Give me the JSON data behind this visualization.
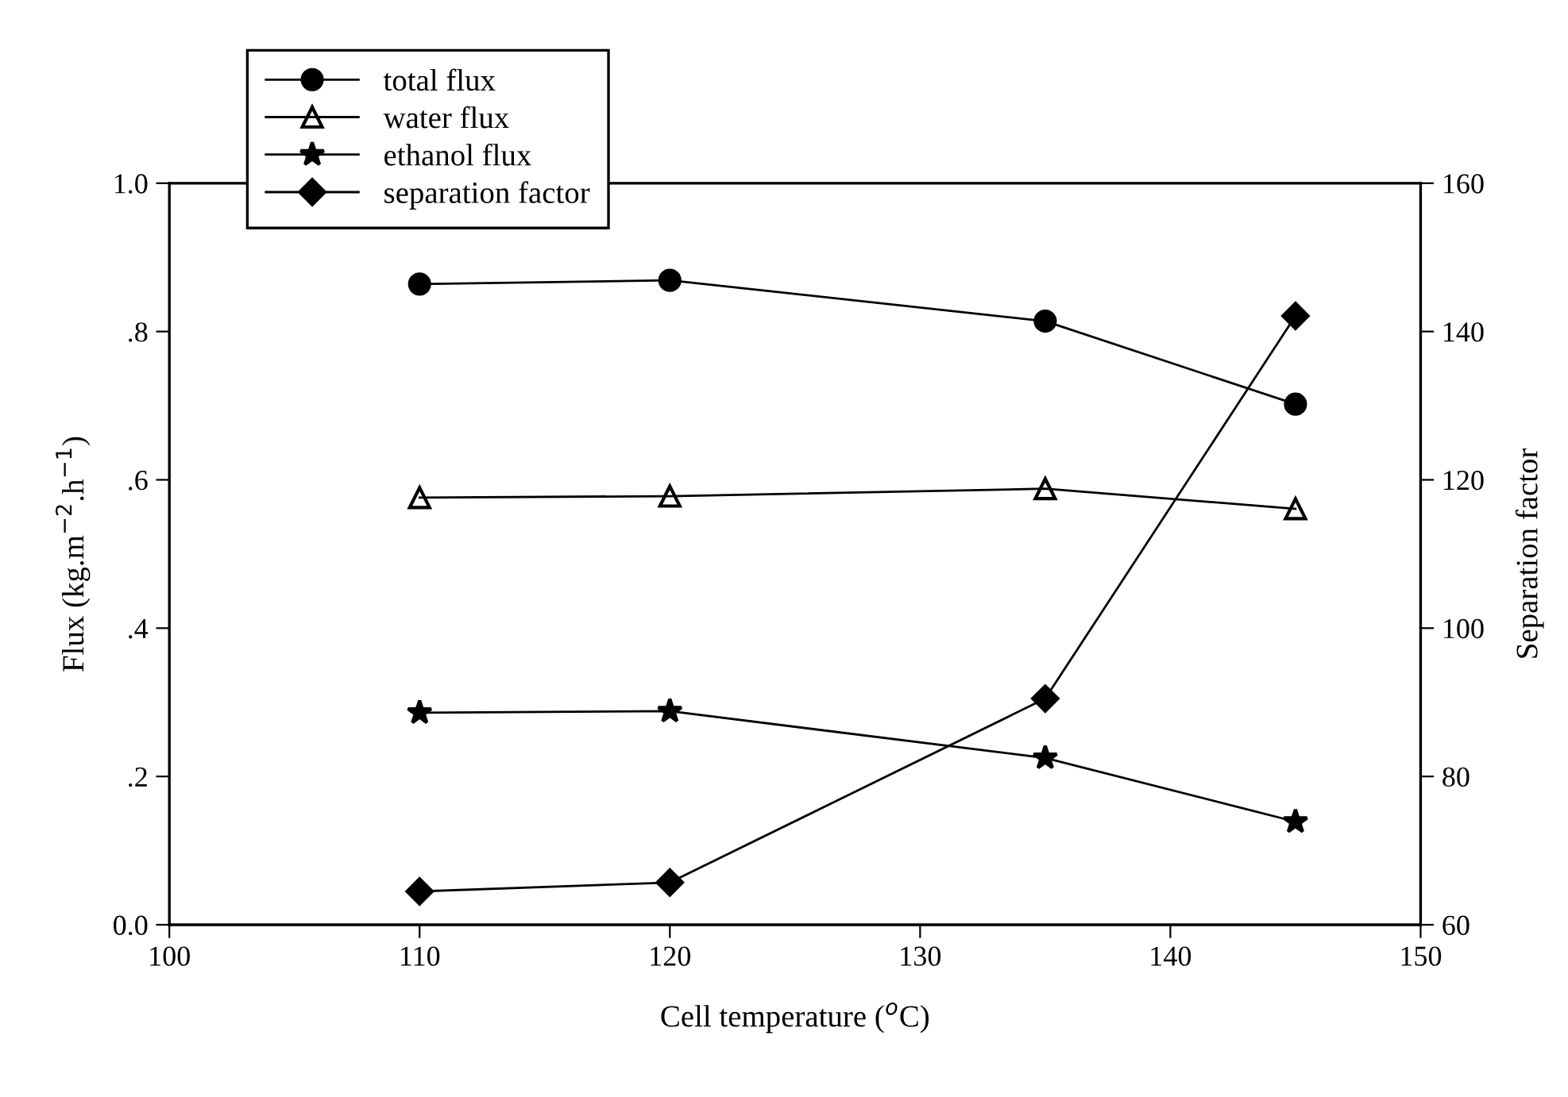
{
  "chart_data": {
    "type": "line",
    "xlabel": "Cell temperature ($^{o}$C)",
    "ylabel": "Flux (kg.m$^{−2}$.h$^{−1}$)",
    "y2label": "Separation factor",
    "x": [
      110,
      120,
      135,
      145
    ],
    "xlim": [
      100,
      150
    ],
    "xticks": [
      100,
      110,
      120,
      130,
      140,
      150
    ],
    "ylim": [
      0,
      1.0
    ],
    "yticks": [
      {
        "value": 0,
        "label": "0.0"
      },
      {
        "value": 0.2,
        "label": ".2"
      },
      {
        "value": 0.4,
        "label": ".4"
      },
      {
        "value": 0.6,
        "label": ".6"
      },
      {
        "value": 0.8,
        "label": ".8"
      },
      {
        "value": 1.0,
        "label": "1.0"
      }
    ],
    "y2lim": [
      60,
      160
    ],
    "y2ticks": [
      60,
      80,
      100,
      120,
      140,
      160
    ],
    "legend": "top left",
    "grid": false,
    "series": [
      {
        "name": "total flux",
        "color": "#000000",
        "marker": "circle",
        "values": [
          0.864,
          0.869,
          0.814,
          0.702
        ]
      },
      {
        "name": "water flux",
        "color": "#000000",
        "marker": "triangle",
        "values": [
          0.576,
          0.578,
          0.588,
          0.561
        ]
      },
      {
        "name": "ethanol flux",
        "color": "#000000",
        "marker": "star",
        "values": [
          0.286,
          0.288,
          0.225,
          0.139
        ]
      },
      {
        "name": "separation factor",
        "color": "#000000",
        "marker": "diamond",
        "axis": "y2",
        "values": [
          64.5,
          65.7,
          90.5,
          142.1
        ]
      }
    ]
  }
}
